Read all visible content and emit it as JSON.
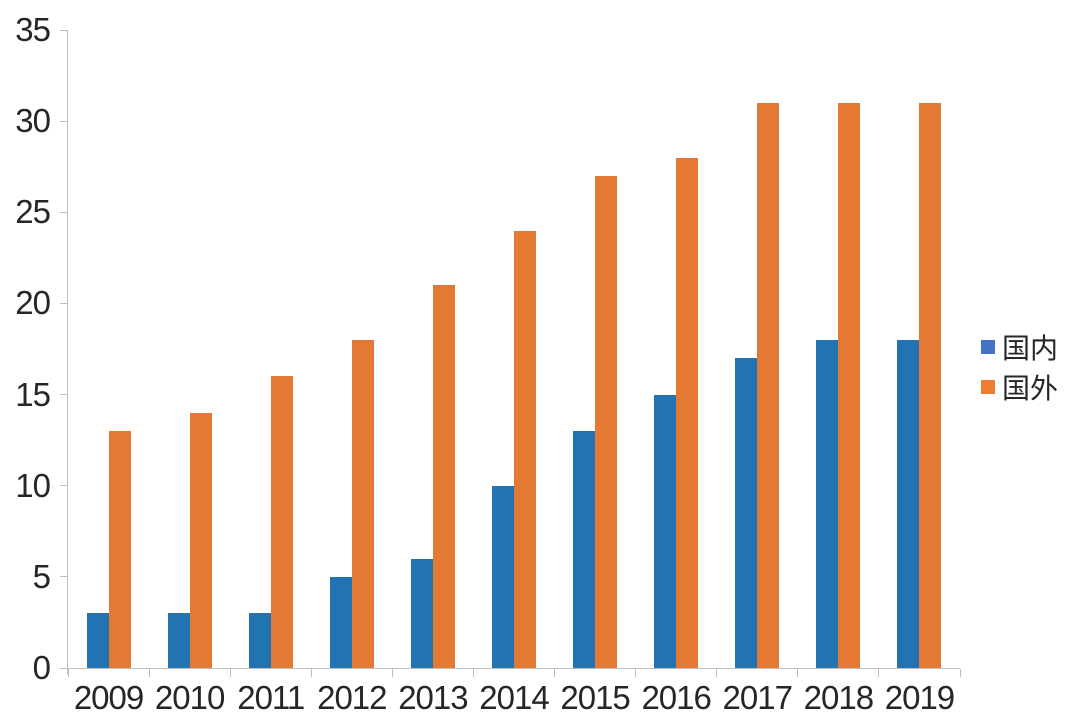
{
  "chart_data": {
    "type": "bar",
    "categories": [
      "2009",
      "2010",
      "2011",
      "2012",
      "2013",
      "2014",
      "2015",
      "2016",
      "2017",
      "2018",
      "2019"
    ],
    "series": [
      {
        "name": "国内",
        "values": [
          3,
          3,
          3,
          5,
          6,
          10,
          13,
          15,
          17,
          18,
          18
        ],
        "bar_color": "#2173B2",
        "legend_color": "#4472C4"
      },
      {
        "name": "国外",
        "values": [
          13,
          14,
          16,
          18,
          21,
          24,
          27,
          28,
          31,
          31,
          31
        ],
        "bar_color": "#E37932",
        "legend_color": "#ED7D31"
      }
    ],
    "title": "",
    "xlabel": "",
    "ylabel": "",
    "ylim": [
      0,
      35
    ],
    "yticks": [
      0,
      5,
      10,
      15,
      20,
      25,
      30,
      35
    ],
    "grid": false,
    "legend_position": "right"
  },
  "colors": {
    "axis": "#BFBFBF",
    "label_text": "#262626",
    "background": "#FFFFFF"
  }
}
